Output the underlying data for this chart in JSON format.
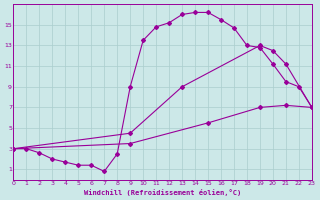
{
  "bg_color": "#cce8e8",
  "grid_color": "#aacece",
  "line_color": "#990099",
  "xlabel": "Windchill (Refroidissement éolien,°C)",
  "curve1_x": [
    0,
    1,
    2,
    3,
    4,
    5,
    6,
    7,
    8,
    9,
    10,
    11,
    12,
    13,
    14,
    15,
    16,
    17,
    18,
    19,
    20,
    21,
    22,
    23
  ],
  "curve1_y": [
    3.0,
    3.0,
    2.6,
    2.0,
    1.7,
    1.4,
    1.4,
    0.8,
    2.5,
    9.0,
    13.5,
    14.8,
    15.2,
    16.0,
    16.2,
    16.2,
    15.5,
    14.7,
    13.0,
    12.8,
    11.2,
    9.5,
    9.0,
    7.0
  ],
  "curve2_x": [
    0,
    9,
    13,
    19,
    20,
    21,
    23
  ],
  "curve2_y": [
    3.0,
    4.5,
    9.0,
    13.0,
    12.5,
    11.2,
    7.0
  ],
  "curve3_x": [
    0,
    9,
    15,
    19,
    21,
    23
  ],
  "curve3_y": [
    3.0,
    3.5,
    5.5,
    7.0,
    7.2,
    7.0
  ],
  "xlim": [
    0,
    23
  ],
  "ylim": [
    0,
    17
  ],
  "xticks": [
    0,
    1,
    2,
    3,
    4,
    5,
    6,
    7,
    8,
    9,
    10,
    11,
    12,
    13,
    14,
    15,
    16,
    17,
    18,
    19,
    20,
    21,
    22,
    23
  ],
  "yticks": [
    1,
    3,
    5,
    7,
    9,
    11,
    13,
    15
  ]
}
